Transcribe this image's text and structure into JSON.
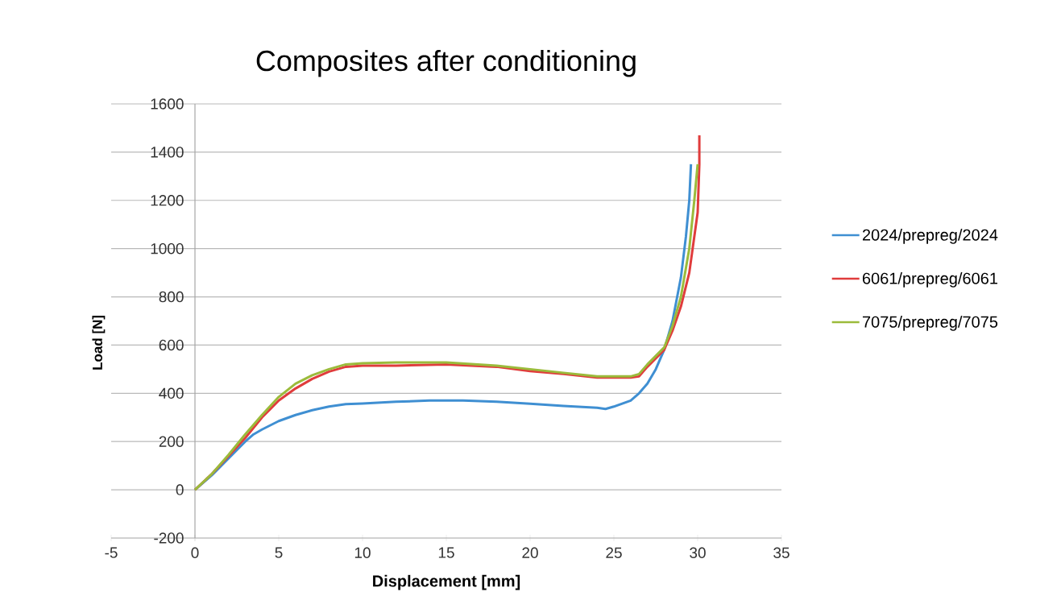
{
  "chart_data": {
    "type": "line",
    "title": "Composites after conditioning",
    "xlabel": "Displacement [mm]",
    "ylabel": "Load [N]",
    "xlim": [
      -5,
      35
    ],
    "ylim": [
      -200,
      1600
    ],
    "xticks": [
      -5,
      0,
      5,
      10,
      15,
      20,
      25,
      30,
      35
    ],
    "yticks": [
      -200,
      0,
      200,
      400,
      600,
      800,
      1000,
      1200,
      1400,
      1600
    ],
    "grid": "y",
    "legend": "right",
    "series": [
      {
        "name": "2024/prepreg/2024",
        "color": "#3f8fd2",
        "x": [
          0,
          1,
          2,
          3,
          3.5,
          4,
          5,
          6,
          7,
          8,
          9,
          10,
          12,
          14,
          16,
          18,
          20,
          22,
          24,
          24.5,
          25,
          26,
          26.5,
          27,
          27.5,
          28,
          28.5,
          29,
          29.3,
          29.5,
          29.6
        ],
        "values": [
          0,
          60,
          130,
          200,
          230,
          250,
          285,
          310,
          330,
          345,
          355,
          358,
          365,
          370,
          370,
          365,
          357,
          348,
          340,
          335,
          345,
          370,
          400,
          440,
          500,
          580,
          700,
          880,
          1050,
          1200,
          1350
        ]
      },
      {
        "name": "6061/prepreg/6061",
        "color": "#e03c3c",
        "x": [
          0,
          1,
          2,
          3,
          4,
          5,
          6,
          7,
          8,
          9,
          10,
          12,
          15,
          18,
          20,
          22,
          24,
          26,
          26.5,
          27,
          28,
          28.5,
          29,
          29.5,
          30,
          30.1,
          30.1
        ],
        "values": [
          0,
          65,
          140,
          215,
          300,
          370,
          420,
          460,
          490,
          510,
          515,
          515,
          520,
          510,
          492,
          480,
          465,
          465,
          470,
          510,
          580,
          660,
          760,
          900,
          1150,
          1350,
          1470
        ]
      },
      {
        "name": "7075/prepreg/7075",
        "color": "#9bbb3b",
        "x": [
          0,
          1,
          2,
          3,
          4,
          5,
          6,
          7,
          8,
          9,
          10,
          12,
          15,
          18,
          20,
          22,
          24,
          26,
          26.5,
          27,
          28,
          28.5,
          29,
          29.5,
          29.8,
          30
        ],
        "values": [
          0,
          65,
          145,
          230,
          310,
          385,
          440,
          475,
          500,
          520,
          525,
          528,
          528,
          515,
          500,
          485,
          470,
          470,
          480,
          520,
          590,
          680,
          800,
          1000,
          1200,
          1350
        ]
      }
    ]
  }
}
